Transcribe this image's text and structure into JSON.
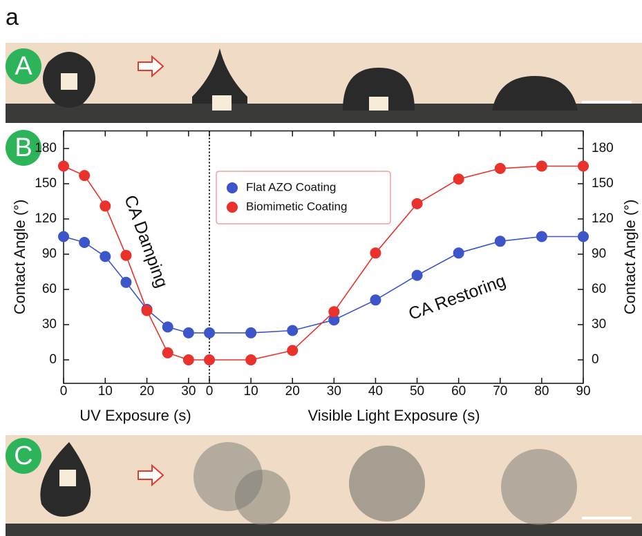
{
  "figure_label": "a",
  "panel_labels": [
    "A",
    "B",
    "C"
  ],
  "chart_data": {
    "type": "line",
    "ylabel": "Contact Angle (°)",
    "y2label": "Contact Angle (°)",
    "ylim": [
      -20,
      195
    ],
    "yticks": [
      0,
      30,
      60,
      90,
      120,
      150,
      180
    ],
    "annotations": [
      "CA Damping",
      "CA Restoring"
    ],
    "panels": [
      {
        "xlabel": "UV Exposure (s)",
        "x": [
          0,
          5,
          10,
          15,
          20,
          25,
          30
        ],
        "xlim": [
          0,
          35
        ],
        "xticks": [
          0,
          10,
          20,
          30
        ]
      },
      {
        "xlabel": "Visible Light Exposure (s)",
        "x": [
          0,
          10,
          20,
          30,
          40,
          50,
          60,
          70,
          80,
          90
        ],
        "xlim": [
          0,
          90
        ],
        "xticks": [
          0,
          10,
          20,
          30,
          40,
          50,
          60,
          70,
          80,
          90
        ]
      }
    ],
    "series": [
      {
        "name": "Flat AZO Coating",
        "color": "#3d55c8",
        "values": [
          [
            105,
            100,
            88,
            66,
            43,
            28,
            23
          ],
          [
            23,
            23,
            25,
            34,
            51,
            72,
            91,
            101,
            105,
            105
          ]
        ]
      },
      {
        "name": "Biomimetic Coating",
        "color": "#e8322b",
        "values": [
          [
            165,
            157,
            131,
            89,
            42,
            6,
            0
          ],
          [
            0,
            0,
            8,
            41,
            91,
            133,
            154,
            163,
            165,
            165
          ]
        ]
      }
    ]
  }
}
